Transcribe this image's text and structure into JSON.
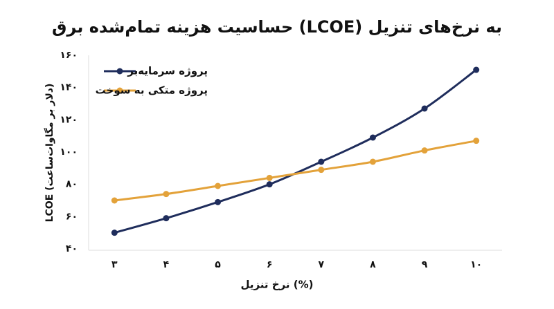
{
  "chart_data": {
    "type": "line",
    "title": "حساسیت هزینه تمام‌شده برق (LCOE) به نرخ‌های تنزیل",
    "x_label": "نرخ تنزیل (%)",
    "y_label": "LCOE (دلار بر مگاوات‌ساعت)",
    "categories": [
      "۳",
      "۴",
      "۵",
      "۶",
      "۷",
      "۸",
      "۹",
      "۱۰"
    ],
    "series": [
      {
        "name": "پروژه سرمایه‌بر",
        "color": "#1f2d5c",
        "values": [
          50,
          59,
          69,
          80,
          94,
          109,
          127,
          151
        ]
      },
      {
        "name": "پروژه متکی به سوخت",
        "color": "#e3a23a",
        "values": [
          70,
          74,
          79,
          84,
          89,
          94,
          101,
          107
        ]
      }
    ],
    "ylim": [
      40,
      160
    ],
    "yticks": [
      {
        "value": 40,
        "label": "۴۰"
      },
      {
        "value": 60,
        "label": "۶۰"
      },
      {
        "value": 80,
        "label": "۸۰"
      },
      {
        "value": 100,
        "label": "۱۰۰"
      },
      {
        "value": 120,
        "label": "۱۲۰"
      },
      {
        "value": 140,
        "label": "۱۴۰"
      },
      {
        "value": 160,
        "label": "۱۶۰"
      }
    ],
    "legend": "top-left"
  }
}
